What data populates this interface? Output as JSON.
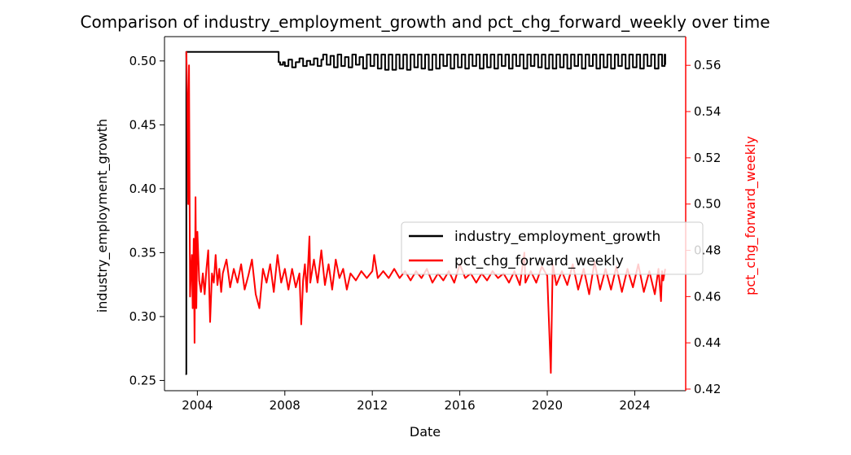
{
  "chart_data": {
    "type": "line",
    "title": "Comparison of industry_employment_growth and pct_chg_forward_weekly over time",
    "xlabel": "Date",
    "ylabel_left": "industry_employment_growth",
    "ylabel_right": "pct_chg_forward_weekly",
    "xlim": [
      "2002-07-01",
      "2026-05-01"
    ],
    "ylim_left": [
      0.242,
      0.519
    ],
    "ylim_right": [
      0.4193,
      0.5724
    ],
    "x_ticks": [
      {
        "date": "2004-01-01",
        "label": "2004"
      },
      {
        "date": "2008-01-01",
        "label": "2008"
      },
      {
        "date": "2012-01-01",
        "label": "2012"
      },
      {
        "date": "2016-01-01",
        "label": "2016"
      },
      {
        "date": "2020-01-01",
        "label": "2020"
      },
      {
        "date": "2024-01-01",
        "label": "2024"
      }
    ],
    "y_ticks_left": [
      "0.25",
      "0.30",
      "0.35",
      "0.40",
      "0.45",
      "0.50"
    ],
    "y_ticks_right": [
      "0.42",
      "0.44",
      "0.46",
      "0.48",
      "0.50",
      "0.52",
      "0.54",
      "0.56"
    ],
    "legend_position": "center-right",
    "grid": false,
    "series": [
      {
        "name": "industry_employment_growth",
        "axis": "left",
        "color": "#000000",
        "step": true,
        "points": [
          [
            "2003-06-15",
            0.255
          ],
          [
            "2003-07-01",
            0.507
          ],
          [
            "2007-09-01",
            0.507
          ],
          [
            "2007-09-20",
            0.499
          ],
          [
            "2007-10-15",
            0.497
          ],
          [
            "2007-12-01",
            0.499
          ],
          [
            "2008-01-01",
            0.496
          ],
          [
            "2008-03-01",
            0.501
          ],
          [
            "2008-05-01",
            0.495
          ],
          [
            "2008-07-01",
            0.499
          ],
          [
            "2008-09-01",
            0.502
          ],
          [
            "2008-11-01",
            0.496
          ],
          [
            "2009-01-01",
            0.5
          ],
          [
            "2009-03-01",
            0.497
          ],
          [
            "2009-05-01",
            0.502
          ],
          [
            "2009-07-01",
            0.496
          ],
          [
            "2009-09-01",
            0.501
          ],
          [
            "2009-10-01",
            0.505
          ],
          [
            "2009-12-01",
            0.497
          ],
          [
            "2010-02-01",
            0.504
          ],
          [
            "2010-04-01",
            0.495
          ],
          [
            "2010-06-01",
            0.505
          ],
          [
            "2010-08-01",
            0.496
          ],
          [
            "2010-10-01",
            0.503
          ],
          [
            "2010-12-01",
            0.495
          ],
          [
            "2011-02-01",
            0.505
          ],
          [
            "2011-04-01",
            0.497
          ],
          [
            "2011-06-01",
            0.503
          ],
          [
            "2011-08-01",
            0.494
          ],
          [
            "2011-10-01",
            0.505
          ],
          [
            "2011-12-01",
            0.496
          ],
          [
            "2012-02-01",
            0.505
          ],
          [
            "2012-04-01",
            0.494
          ],
          [
            "2012-06-01",
            0.505
          ],
          [
            "2012-08-01",
            0.493
          ],
          [
            "2012-10-01",
            0.505
          ],
          [
            "2012-12-01",
            0.493
          ],
          [
            "2013-02-01",
            0.505
          ],
          [
            "2013-04-01",
            0.494
          ],
          [
            "2013-06-01",
            0.505
          ],
          [
            "2013-08-01",
            0.493
          ],
          [
            "2013-10-01",
            0.505
          ],
          [
            "2013-12-01",
            0.495
          ],
          [
            "2014-02-01",
            0.505
          ],
          [
            "2014-04-01",
            0.494
          ],
          [
            "2014-06-01",
            0.505
          ],
          [
            "2014-08-01",
            0.493
          ],
          [
            "2014-10-01",
            0.505
          ],
          [
            "2014-12-01",
            0.494
          ],
          [
            "2015-02-01",
            0.505
          ],
          [
            "2015-04-01",
            0.496
          ],
          [
            "2015-06-01",
            0.505
          ],
          [
            "2015-08-01",
            0.494
          ],
          [
            "2015-10-01",
            0.505
          ],
          [
            "2015-12-01",
            0.495
          ],
          [
            "2016-02-01",
            0.505
          ],
          [
            "2016-04-01",
            0.494
          ],
          [
            "2016-06-01",
            0.505
          ],
          [
            "2016-08-01",
            0.496
          ],
          [
            "2016-10-01",
            0.505
          ],
          [
            "2016-12-01",
            0.494
          ],
          [
            "2017-02-01",
            0.505
          ],
          [
            "2017-04-01",
            0.495
          ],
          [
            "2017-06-01",
            0.505
          ],
          [
            "2017-08-01",
            0.494
          ],
          [
            "2017-10-01",
            0.505
          ],
          [
            "2017-12-01",
            0.496
          ],
          [
            "2018-02-01",
            0.505
          ],
          [
            "2018-04-01",
            0.494
          ],
          [
            "2018-06-01",
            0.505
          ],
          [
            "2018-08-01",
            0.496
          ],
          [
            "2018-10-01",
            0.505
          ],
          [
            "2018-12-01",
            0.494
          ],
          [
            "2019-02-01",
            0.505
          ],
          [
            "2019-04-01",
            0.496
          ],
          [
            "2019-06-01",
            0.505
          ],
          [
            "2019-08-01",
            0.495
          ],
          [
            "2019-10-01",
            0.505
          ],
          [
            "2019-12-01",
            0.494
          ],
          [
            "2020-02-01",
            0.505
          ],
          [
            "2020-04-01",
            0.494
          ],
          [
            "2020-06-01",
            0.505
          ],
          [
            "2020-08-01",
            0.495
          ],
          [
            "2020-10-01",
            0.505
          ],
          [
            "2020-12-01",
            0.494
          ],
          [
            "2021-02-01",
            0.505
          ],
          [
            "2021-04-01",
            0.496
          ],
          [
            "2021-06-01",
            0.505
          ],
          [
            "2021-08-01",
            0.494
          ],
          [
            "2021-10-01",
            0.505
          ],
          [
            "2021-12-01",
            0.496
          ],
          [
            "2022-02-01",
            0.505
          ],
          [
            "2022-04-01",
            0.494
          ],
          [
            "2022-06-01",
            0.505
          ],
          [
            "2022-08-01",
            0.495
          ],
          [
            "2022-10-01",
            0.505
          ],
          [
            "2022-12-01",
            0.494
          ],
          [
            "2023-02-01",
            0.505
          ],
          [
            "2023-04-01",
            0.496
          ],
          [
            "2023-06-01",
            0.505
          ],
          [
            "2023-08-01",
            0.494
          ],
          [
            "2023-10-01",
            0.505
          ],
          [
            "2023-12-01",
            0.495
          ],
          [
            "2024-02-01",
            0.505
          ],
          [
            "2024-04-01",
            0.494
          ],
          [
            "2024-06-01",
            0.505
          ],
          [
            "2024-08-01",
            0.496
          ],
          [
            "2024-10-01",
            0.505
          ],
          [
            "2024-12-01",
            0.494
          ],
          [
            "2025-02-01",
            0.505
          ],
          [
            "2025-04-01",
            0.496
          ],
          [
            "2025-05-15",
            0.505
          ],
          [
            "2025-05-25",
            0.497
          ]
        ]
      },
      {
        "name": "pct_chg_forward_weekly",
        "axis": "right",
        "color": "#ff0000",
        "step": false,
        "points": [
          [
            "2003-07-01",
            0.566
          ],
          [
            "2003-07-15",
            0.548
          ],
          [
            "2003-08-01",
            0.5
          ],
          [
            "2003-08-15",
            0.56
          ],
          [
            "2003-09-01",
            0.46
          ],
          [
            "2003-09-15",
            0.47
          ],
          [
            "2003-10-01",
            0.478
          ],
          [
            "2003-10-15",
            0.455
          ],
          [
            "2003-11-01",
            0.485
          ],
          [
            "2003-11-15",
            0.44
          ],
          [
            "2003-12-01",
            0.503
          ],
          [
            "2003-12-15",
            0.455
          ],
          [
            "2004-01-01",
            0.488
          ],
          [
            "2004-02-01",
            0.467
          ],
          [
            "2004-03-01",
            0.462
          ],
          [
            "2004-04-01",
            0.47
          ],
          [
            "2004-05-01",
            0.461
          ],
          [
            "2004-06-01",
            0.472
          ],
          [
            "2004-07-01",
            0.48
          ],
          [
            "2004-08-01",
            0.449
          ],
          [
            "2004-09-01",
            0.47
          ],
          [
            "2004-10-01",
            0.466
          ],
          [
            "2004-11-01",
            0.478
          ],
          [
            "2004-12-01",
            0.465
          ],
          [
            "2005-01-01",
            0.472
          ],
          [
            "2005-02-01",
            0.462
          ],
          [
            "2005-03-01",
            0.47
          ],
          [
            "2005-05-01",
            0.476
          ],
          [
            "2005-07-01",
            0.464
          ],
          [
            "2005-09-01",
            0.472
          ],
          [
            "2005-11-01",
            0.466
          ],
          [
            "2006-01-01",
            0.474
          ],
          [
            "2006-03-01",
            0.463
          ],
          [
            "2006-05-01",
            0.469
          ],
          [
            "2006-07-01",
            0.476
          ],
          [
            "2006-09-01",
            0.461
          ],
          [
            "2006-11-01",
            0.455
          ],
          [
            "2007-01-01",
            0.472
          ],
          [
            "2007-03-01",
            0.466
          ],
          [
            "2007-05-01",
            0.474
          ],
          [
            "2007-07-01",
            0.462
          ],
          [
            "2007-09-01",
            0.478
          ],
          [
            "2007-11-01",
            0.466
          ],
          [
            "2008-01-01",
            0.472
          ],
          [
            "2008-03-01",
            0.463
          ],
          [
            "2008-05-01",
            0.472
          ],
          [
            "2008-07-01",
            0.464
          ],
          [
            "2008-09-01",
            0.47
          ],
          [
            "2008-10-01",
            0.448
          ],
          [
            "2008-11-01",
            0.467
          ],
          [
            "2008-12-01",
            0.474
          ],
          [
            "2009-01-01",
            0.462
          ],
          [
            "2009-02-15",
            0.486
          ],
          [
            "2009-03-01",
            0.466
          ],
          [
            "2009-05-01",
            0.476
          ],
          [
            "2009-07-01",
            0.466
          ],
          [
            "2009-09-01",
            0.48
          ],
          [
            "2009-11-01",
            0.465
          ],
          [
            "2010-01-01",
            0.474
          ],
          [
            "2010-03-01",
            0.463
          ],
          [
            "2010-05-01",
            0.476
          ],
          [
            "2010-07-01",
            0.468
          ],
          [
            "2010-09-01",
            0.472
          ],
          [
            "2010-11-01",
            0.463
          ],
          [
            "2011-01-01",
            0.47
          ],
          [
            "2011-04-01",
            0.467
          ],
          [
            "2011-07-01",
            0.471
          ],
          [
            "2011-10-01",
            0.468
          ],
          [
            "2012-01-01",
            0.471
          ],
          [
            "2012-02-01",
            0.478
          ],
          [
            "2012-04-01",
            0.468
          ],
          [
            "2012-07-01",
            0.471
          ],
          [
            "2012-10-01",
            0.468
          ],
          [
            "2013-01-01",
            0.472
          ],
          [
            "2013-04-01",
            0.468
          ],
          [
            "2013-07-01",
            0.471
          ],
          [
            "2013-10-01",
            0.467
          ],
          [
            "2014-01-01",
            0.471
          ],
          [
            "2014-04-01",
            0.468
          ],
          [
            "2014-07-01",
            0.472
          ],
          [
            "2014-10-01",
            0.466
          ],
          [
            "2015-01-01",
            0.47
          ],
          [
            "2015-04-01",
            0.467
          ],
          [
            "2015-07-01",
            0.471
          ],
          [
            "2015-10-01",
            0.466
          ],
          [
            "2016-01-01",
            0.474
          ],
          [
            "2016-04-01",
            0.468
          ],
          [
            "2016-07-01",
            0.47
          ],
          [
            "2016-10-01",
            0.466
          ],
          [
            "2017-01-01",
            0.47
          ],
          [
            "2017-04-01",
            0.467
          ],
          [
            "2017-07-01",
            0.471
          ],
          [
            "2017-10-01",
            0.468
          ],
          [
            "2018-01-01",
            0.47
          ],
          [
            "2018-04-01",
            0.466
          ],
          [
            "2018-07-01",
            0.471
          ],
          [
            "2018-10-01",
            0.465
          ],
          [
            "2018-12-15",
            0.479
          ],
          [
            "2019-01-01",
            0.466
          ],
          [
            "2019-04-01",
            0.471
          ],
          [
            "2019-07-01",
            0.466
          ],
          [
            "2019-10-01",
            0.473
          ],
          [
            "2020-01-01",
            0.469
          ],
          [
            "2020-03-01",
            0.427
          ],
          [
            "2020-04-01",
            0.474
          ],
          [
            "2020-06-01",
            0.465
          ],
          [
            "2020-09-01",
            0.471
          ],
          [
            "2020-12-01",
            0.465
          ],
          [
            "2021-03-01",
            0.474
          ],
          [
            "2021-06-01",
            0.463
          ],
          [
            "2021-09-01",
            0.472
          ],
          [
            "2021-12-01",
            0.461
          ],
          [
            "2022-03-01",
            0.475
          ],
          [
            "2022-06-01",
            0.463
          ],
          [
            "2022-09-01",
            0.472
          ],
          [
            "2022-12-01",
            0.463
          ],
          [
            "2023-03-01",
            0.473
          ],
          [
            "2023-06-01",
            0.462
          ],
          [
            "2023-09-01",
            0.472
          ],
          [
            "2023-12-01",
            0.464
          ],
          [
            "2024-03-01",
            0.474
          ],
          [
            "2024-06-01",
            0.462
          ],
          [
            "2024-09-01",
            0.471
          ],
          [
            "2024-12-01",
            0.461
          ],
          [
            "2025-02-01",
            0.472
          ],
          [
            "2025-03-15",
            0.458
          ],
          [
            "2025-04-01",
            0.471
          ],
          [
            "2025-04-20",
            0.467
          ],
          [
            "2025-05-25",
            0.472
          ]
        ]
      }
    ]
  }
}
